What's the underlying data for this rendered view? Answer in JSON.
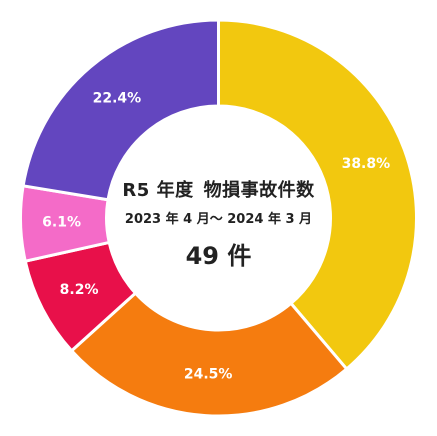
{
  "center": {
    "title_part1": "R5 年度",
    "title_part2": "物損事故件数",
    "period": "2023 年 4 月～ 2024 年 3 月",
    "count": "49 件"
  },
  "chart_data": {
    "type": "pie",
    "variant": "donut",
    "total": "49 件",
    "slices": [
      {
        "label": "38.8%",
        "value": 38.8,
        "color": "#F2C80F"
      },
      {
        "label": "24.5%",
        "value": 24.5,
        "color": "#F57C0F"
      },
      {
        "label": "8.2%",
        "value": 8.2,
        "color": "#E8104A"
      },
      {
        "label": "6.1%",
        "value": 6.1,
        "color": "#F46BC8"
      },
      {
        "label": "22.4%",
        "value": 22.4,
        "color": "#6346BF"
      }
    ]
  }
}
